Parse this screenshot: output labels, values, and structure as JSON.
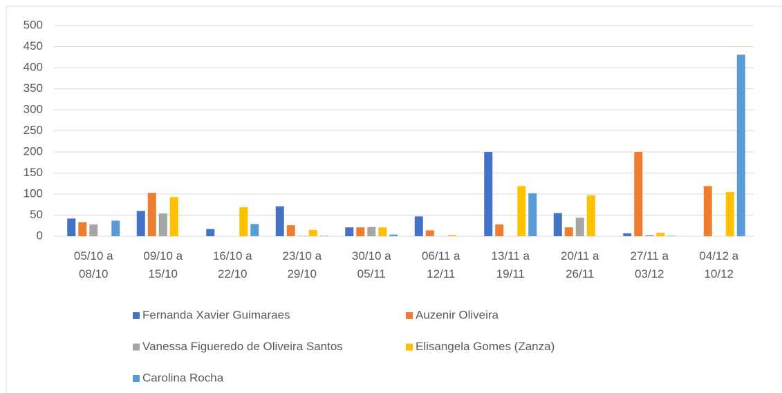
{
  "chart_data": {
    "type": "bar",
    "categories": [
      "05/10 a\n08/10",
      "09/10 a\n15/10",
      "16/10 a\n22/10",
      "23/10 a\n29/10",
      "30/10 a\n05/11",
      "06/11 a\n12/11",
      "13/11 a\n19/11",
      "20/11 a\n26/11",
      "27/11 a\n03/12",
      "04/12 a\n10/12"
    ],
    "series": [
      {
        "name": "Fernanda Xavier Guimaraes",
        "color": "#4472c4",
        "values": [
          42,
          60,
          17,
          71,
          21,
          47,
          200,
          55,
          7,
          0
        ]
      },
      {
        "name": "Auzenir Oliveira",
        "color": "#ed7d31",
        "values": [
          33,
          103,
          0,
          26,
          21,
          14,
          28,
          21,
          200,
          119
        ]
      },
      {
        "name": "Vanessa Figueredo de Oliveira Santos",
        "color": "#a5a5a5",
        "values": [
          28,
          54,
          0,
          1,
          22,
          0,
          0,
          44,
          3,
          0
        ]
      },
      {
        "name": "Elisangela Gomes (Zanza)",
        "color": "#ffc000",
        "values": [
          0,
          93,
          69,
          15,
          21,
          3,
          119,
          97,
          8,
          105
        ]
      },
      {
        "name": "Carolina Rocha",
        "color": "#5b9bd5",
        "values": [
          37,
          0,
          29,
          1,
          4,
          0,
          102,
          0,
          1,
          431
        ]
      }
    ],
    "ylim": [
      0,
      500
    ],
    "yticks": [
      0,
      50,
      100,
      150,
      200,
      250,
      300,
      350,
      400,
      450,
      500
    ],
    "grid": true,
    "legend": "bottom"
  }
}
